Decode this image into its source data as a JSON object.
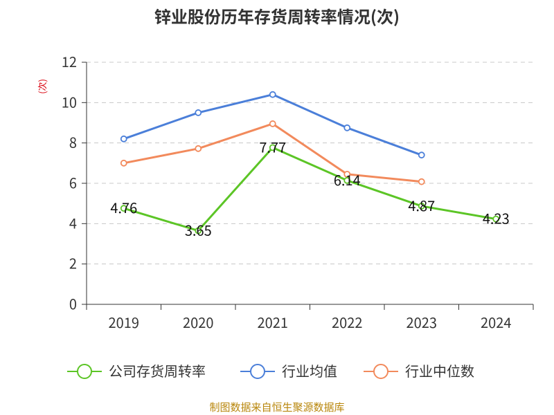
{
  "chart_data": {
    "type": "line",
    "title": "锌业股份历年存货周转率情况(次)",
    "ylabel": "(次)",
    "xlabel": "",
    "categories": [
      "2019",
      "2020",
      "2021",
      "2022",
      "2023",
      "2024"
    ],
    "ylim": [
      0,
      12
    ],
    "yticks": [
      0,
      2,
      4,
      6,
      8,
      10,
      12
    ],
    "grid": true,
    "legend_position": "bottom",
    "series": [
      {
        "name": "公司存货周转率",
        "color": "#5cc526",
        "values": [
          4.76,
          3.65,
          7.77,
          6.14,
          4.87,
          4.23
        ],
        "show_labels": true
      },
      {
        "name": "行业均值",
        "color": "#4b7fd9",
        "values": [
          8.2,
          9.5,
          10.4,
          8.75,
          7.4,
          null
        ],
        "show_labels": false
      },
      {
        "name": "行业中位数",
        "color": "#f28a5c",
        "values": [
          7.0,
          7.72,
          8.95,
          6.45,
          6.08,
          null
        ],
        "show_labels": false
      }
    ],
    "data_labels": [
      "4.76",
      "3.65",
      "7.77",
      "6.14",
      "4.87",
      "4.23"
    ]
  },
  "footer": "制图数据来自恒生聚源数据库"
}
